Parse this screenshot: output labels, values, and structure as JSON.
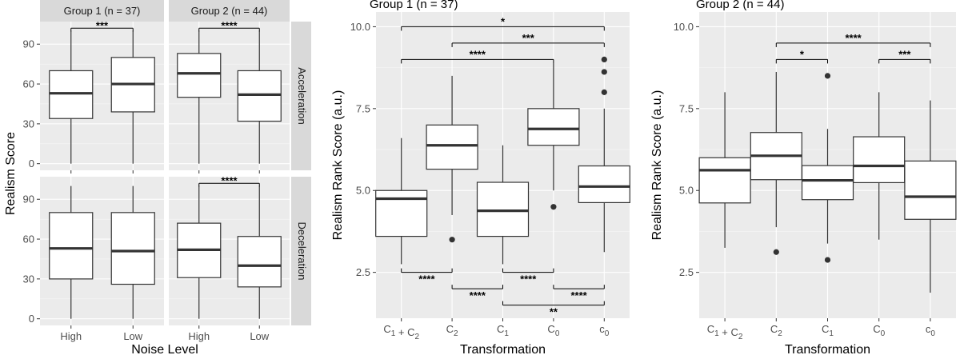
{
  "chart_data": [
    {
      "type": "box",
      "id": "faceted",
      "facet_columns": [
        "Group 1 (n = 37)",
        "Group 2 (n = 44)"
      ],
      "facet_rows": [
        "Acceleration",
        "Deceleration"
      ],
      "categories": [
        "High",
        "Low"
      ],
      "xlabel": "Noise Level",
      "ylabel": "Realism Score",
      "ylim": [
        -5,
        107
      ],
      "yticks": [
        0,
        30,
        60,
        90
      ],
      "panels": [
        {
          "col": 0,
          "row": 0,
          "boxes": [
            {
              "category": "High",
              "min": 0,
              "q1": 34,
              "median": 53,
              "q3": 70,
              "max": 100,
              "outliers": []
            },
            {
              "category": "Low",
              "min": 0,
              "q1": 39,
              "median": 60,
              "q3": 80,
              "max": 100,
              "outliers": []
            }
          ],
          "brackets": [
            {
              "from": 0,
              "to": 1,
              "label": "***"
            }
          ]
        },
        {
          "col": 1,
          "row": 0,
          "boxes": [
            {
              "category": "High",
              "min": 0,
              "q1": 50,
              "median": 68,
              "q3": 83,
              "max": 100,
              "outliers": []
            },
            {
              "category": "Low",
              "min": 0,
              "q1": 32,
              "median": 52,
              "q3": 70,
              "max": 100,
              "outliers": []
            }
          ],
          "brackets": [
            {
              "from": 0,
              "to": 1,
              "label": "****"
            }
          ]
        },
        {
          "col": 0,
          "row": 1,
          "boxes": [
            {
              "category": "High",
              "min": 0,
              "q1": 30,
              "median": 53,
              "q3": 80,
              "max": 100,
              "outliers": []
            },
            {
              "category": "Low",
              "min": 0,
              "q1": 26,
              "median": 51,
              "q3": 80,
              "max": 100,
              "outliers": []
            }
          ],
          "brackets": []
        },
        {
          "col": 1,
          "row": 1,
          "boxes": [
            {
              "category": "High",
              "min": 0,
              "q1": 31,
              "median": 52,
              "q3": 72,
              "max": 100,
              "outliers": []
            },
            {
              "category": "Low",
              "min": 0,
              "q1": 24,
              "median": 40,
              "q3": 62,
              "max": 100,
              "outliers": []
            }
          ],
          "brackets": [
            {
              "from": 0,
              "to": 1,
              "label": "****"
            }
          ]
        }
      ]
    },
    {
      "type": "box",
      "id": "group1",
      "title": "Group 1 (n = 37)",
      "categories": [
        "C1+C2",
        "C2",
        "C1",
        "C0",
        "c0"
      ],
      "xlabel": "Transformation",
      "ylabel": "Realism Rank Score (a.u.)",
      "ylim": [
        1.1,
        10.45
      ],
      "yticks": [
        2.5,
        5.0,
        7.5,
        10.0
      ],
      "ytick_labels": [
        "2.5",
        "5.0",
        "7.5",
        "10.0"
      ],
      "boxes": [
        {
          "category": "C1+C2",
          "min": 2.75,
          "q1": 3.6,
          "median": 4.75,
          "q3": 5.0,
          "max": 6.6,
          "outliers": []
        },
        {
          "category": "C2",
          "min": 4.25,
          "q1": 5.65,
          "median": 6.38,
          "q3": 7.0,
          "max": 8.5,
          "outliers": [
            3.5
          ]
        },
        {
          "category": "C1",
          "min": 2.75,
          "q1": 3.6,
          "median": 4.38,
          "q3": 5.25,
          "max": 6.38,
          "outliers": []
        },
        {
          "category": "C0",
          "min": 5.0,
          "q1": 6.38,
          "median": 6.88,
          "q3": 7.5,
          "max": 8.88,
          "outliers": [
            4.5
          ]
        },
        {
          "category": "c0",
          "min": 3.12,
          "q1": 4.63,
          "median": 5.12,
          "q3": 5.75,
          "max": 7.5,
          "outliers": [
            8.0,
            8.62,
            9.0
          ]
        }
      ],
      "brackets": [
        {
          "from": 0,
          "to": 4,
          "y": 10.0,
          "label": "*",
          "side": "top"
        },
        {
          "from": 1,
          "to": 4,
          "y": 9.5,
          "label": "***",
          "side": "top"
        },
        {
          "from": 0,
          "to": 3,
          "y": 9.0,
          "label": "****",
          "side": "top"
        },
        {
          "from": 0,
          "to": 1,
          "y": 2.5,
          "label": "****",
          "side": "bottom"
        },
        {
          "from": 2,
          "to": 3,
          "y": 2.5,
          "label": "****",
          "side": "bottom"
        },
        {
          "from": 1,
          "to": 2,
          "y": 2.0,
          "label": "****",
          "side": "bottom"
        },
        {
          "from": 3,
          "to": 4,
          "y": 2.0,
          "label": "****",
          "side": "bottom"
        },
        {
          "from": 2,
          "to": 4,
          "y": 1.5,
          "label": "**",
          "side": "bottom"
        }
      ]
    },
    {
      "type": "box",
      "id": "group2",
      "title": "Group 2 (n = 44)",
      "categories": [
        "C1+C2",
        "C2",
        "C1",
        "C0",
        "c0"
      ],
      "xlabel": "Transformation",
      "ylabel": "Realism Rank Score (a.u.)",
      "ylim": [
        1.1,
        10.45
      ],
      "yticks": [
        2.5,
        5.0,
        7.5,
        10.0
      ],
      "ytick_labels": [
        "2.5",
        "5.0",
        "7.5",
        "10.0"
      ],
      "boxes": [
        {
          "category": "C1+C2",
          "min": 3.25,
          "q1": 4.62,
          "median": 5.62,
          "q3": 6.0,
          "max": 8.0,
          "outliers": []
        },
        {
          "category": "C2",
          "min": 3.88,
          "q1": 5.33,
          "median": 6.06,
          "q3": 6.77,
          "max": 8.62,
          "outliers": [
            3.12
          ]
        },
        {
          "category": "C1",
          "min": 3.38,
          "q1": 4.72,
          "median": 5.31,
          "q3": 5.76,
          "max": 6.88,
          "outliers": [
            2.88,
            8.5
          ]
        },
        {
          "category": "C0",
          "min": 3.5,
          "q1": 5.24,
          "median": 5.75,
          "q3": 6.64,
          "max": 8.0,
          "outliers": []
        },
        {
          "category": "c0",
          "min": 1.88,
          "q1": 4.12,
          "median": 4.81,
          "q3": 5.9,
          "max": 7.75,
          "outliers": []
        }
      ],
      "brackets": [
        {
          "from": 1,
          "to": 4,
          "y": 9.5,
          "label": "****",
          "side": "top"
        },
        {
          "from": 1,
          "to": 2,
          "y": 9.0,
          "label": "*",
          "side": "top"
        },
        {
          "from": 3,
          "to": 4,
          "y": 9.0,
          "label": "***",
          "side": "top"
        }
      ]
    }
  ]
}
